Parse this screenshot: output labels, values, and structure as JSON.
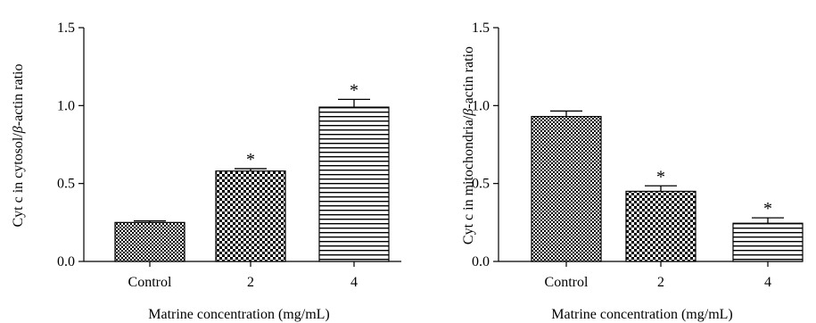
{
  "chart_data": [
    {
      "type": "bar",
      "categories": [
        "Control",
        "2",
        "4"
      ],
      "values": [
        0.25,
        0.58,
        0.99
      ],
      "errors": [
        0.01,
        0.015,
        0.05
      ],
      "significance": [
        "",
        "*",
        "*"
      ],
      "patterns": [
        "fine-checker",
        "coarse-checker",
        "horizontal-lines"
      ],
      "xlabel": "Matrine concentration (mg/mL)",
      "ylabel_parts": [
        "Cyt c in cytosol/",
        "β",
        "-actin ratio"
      ],
      "ylim": [
        0,
        1.5
      ],
      "yticks": [
        "0.0",
        "0.5",
        "1.0",
        "1.5"
      ],
      "grid": false
    },
    {
      "type": "bar",
      "categories": [
        "Control",
        "2",
        "4"
      ],
      "values": [
        0.93,
        0.45,
        0.245
      ],
      "errors": [
        0.035,
        0.035,
        0.035
      ],
      "significance": [
        "",
        "*",
        "*"
      ],
      "patterns": [
        "fine-checker",
        "coarse-checker",
        "horizontal-lines"
      ],
      "xlabel": "Matrine concentration (mg/mL)",
      "ylabel_parts": [
        "Cyt c in mitochondria/",
        "β",
        "-actin ratio"
      ],
      "ylim": [
        0,
        1.5
      ],
      "yticks": [
        "0.0",
        "0.5",
        "1.0",
        "1.5"
      ],
      "grid": false
    }
  ]
}
